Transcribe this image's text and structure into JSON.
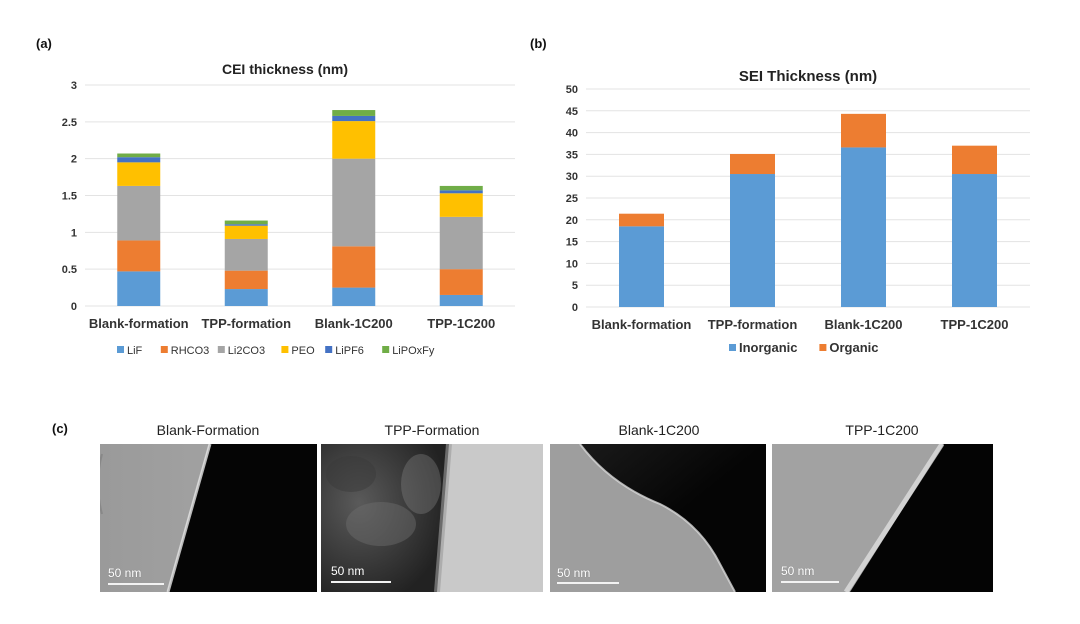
{
  "panels": {
    "a_label": "(a)",
    "b_label": "(b)",
    "c_label": "(c)"
  },
  "chart_data": [
    {
      "type": "bar",
      "stacked": true,
      "title": "CEI thickness (nm)",
      "xlabel": "",
      "ylabel": "",
      "categories": [
        "Blank-formation",
        "TPP-formation",
        "Blank-1C200",
        "TPP-1C200"
      ],
      "ylim": [
        0,
        3
      ],
      "yticks": [
        "0",
        "0.5",
        "1",
        "1.5",
        "2",
        "2.5",
        "3"
      ],
      "ytick_values": [
        0,
        0.5,
        1,
        1.5,
        2,
        2.5,
        3
      ],
      "grid": true,
      "legend_position": "bottom",
      "series": [
        {
          "name": "LiF",
          "color": "#5B9BD5",
          "values": [
            0.47,
            0.23,
            0.25,
            0.15
          ]
        },
        {
          "name": "RHCO3",
          "color": "#ED7D31",
          "values": [
            0.42,
            0.25,
            0.56,
            0.35
          ]
        },
        {
          "name": "Li2CO3",
          "color": "#A5A5A5",
          "values": [
            0.74,
            0.43,
            1.19,
            0.71
          ]
        },
        {
          "name": "PEO",
          "color": "#FFC000",
          "values": [
            0.32,
            0.18,
            0.51,
            0.32
          ]
        },
        {
          "name": "LiPF6",
          "color": "#4472C4",
          "values": [
            0.07,
            0.02,
            0.07,
            0.04
          ]
        },
        {
          "name": "LiPOxFy",
          "color": "#70AD47",
          "values": [
            0.05,
            0.05,
            0.08,
            0.06
          ]
        }
      ]
    },
    {
      "type": "bar",
      "stacked": true,
      "title": "SEI Thickness (nm)",
      "xlabel": "",
      "ylabel": "",
      "categories": [
        "Blank-formation",
        "TPP-formation",
        "Blank-1C200",
        "TPP-1C200"
      ],
      "ylim": [
        0,
        50
      ],
      "yticks": [
        "0",
        "5",
        "10",
        "15",
        "20",
        "25",
        "30",
        "35",
        "40",
        "45",
        "50"
      ],
      "ytick_values": [
        0,
        5,
        10,
        15,
        20,
        25,
        30,
        35,
        40,
        45,
        50
      ],
      "grid": true,
      "legend_position": "bottom",
      "series": [
        {
          "name": "Inorganic",
          "color": "#5B9BD5",
          "values": [
            18.5,
            30.5,
            36.6,
            30.5
          ]
        },
        {
          "name": "Organic",
          "color": "#ED7D31",
          "values": [
            2.9,
            4.6,
            7.7,
            6.5
          ]
        }
      ]
    }
  ],
  "micrographs": [
    {
      "title": "Blank-Formation",
      "scale_bar": "50 nm"
    },
    {
      "title": "TPP-Formation",
      "scale_bar": "50 nm"
    },
    {
      "title": "Blank-1C200",
      "scale_bar": "50 nm"
    },
    {
      "title": "TPP-1C200",
      "scale_bar": "50 nm"
    }
  ]
}
